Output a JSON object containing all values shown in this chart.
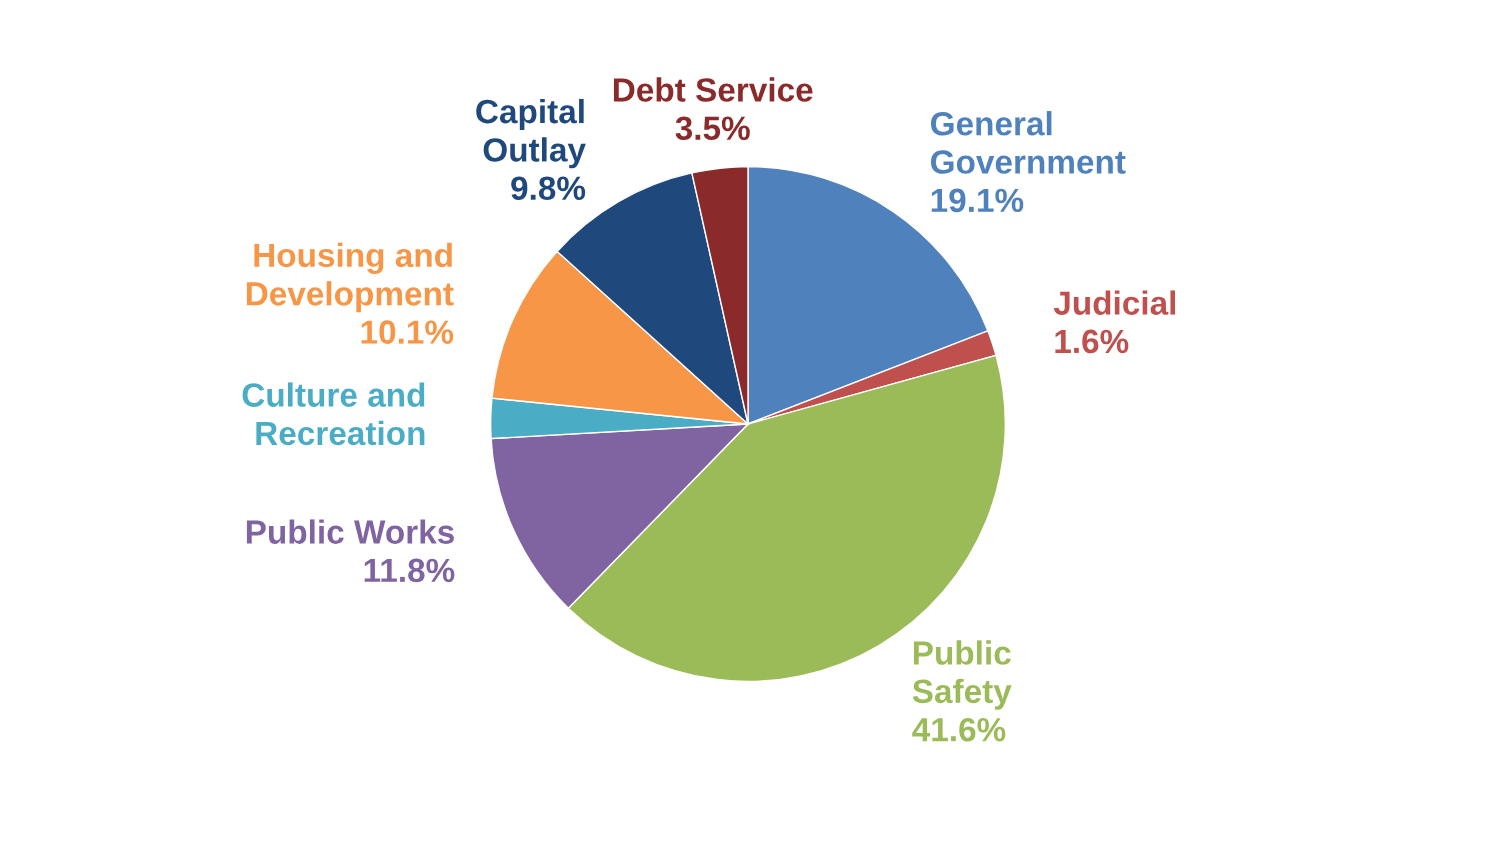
{
  "chart_data": {
    "type": "pie",
    "categories": [
      "General Government",
      "Judicial",
      "Public Safety",
      "Public Works",
      "Culture and Recreation",
      "Housing and Development",
      "Capital Outlay",
      "Debt Service"
    ],
    "values": [
      19.1,
      1.6,
      41.6,
      11.8,
      2.5,
      10.1,
      9.8,
      3.5
    ],
    "value_labels": [
      "19.1%",
      "1.6%",
      "41.6%",
      "11.8%",
      null,
      "10.1%",
      "9.8%",
      "3.5%"
    ],
    "colors": [
      "#4f81bd",
      "#c0504d",
      "#9bbb59",
      "#8064a2",
      "#4bacc6",
      "#f79646",
      "#1f497d",
      "#8b2a2a"
    ],
    "legend": false
  }
}
